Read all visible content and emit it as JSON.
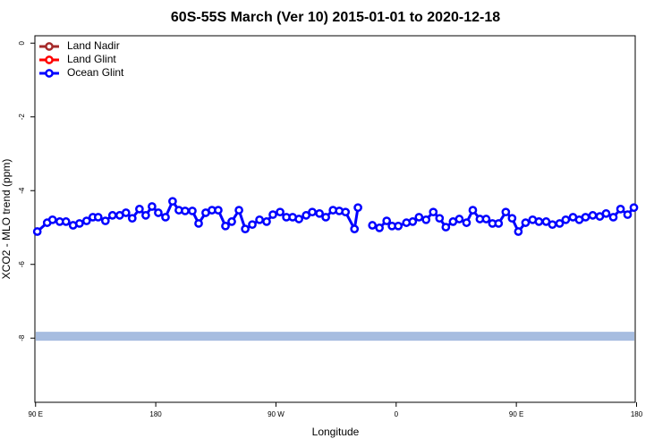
{
  "chart_data": {
    "type": "line",
    "title": "60S-55S March (Ver 10)   2015-01-01 to 2020-12-18",
    "x_label": "Longitude",
    "y_label": "XCO2 - MLO trend (ppm)",
    "xlim": [
      89.5,
      539
    ],
    "xticks": [
      {
        "value": 90,
        "label": "90 E"
      },
      180,
      {
        "value": 270,
        "label": "90 W"
      },
      0,
      {
        "value": 450,
        "label": "90 E"
      },
      {
        "value": 540,
        "label": "180"
      }
    ],
    "ylim": [
      -9.74,
      0.2
    ],
    "yticks": [
      0,
      -2,
      -4,
      -6,
      -8
    ],
    "legend": "top-left",
    "hline": {
      "value": -7.95,
      "color": "#a7bde0"
    },
    "series": [
      {
        "name": "Land Nadir",
        "color": "#a52a2a",
        "x": [],
        "values": []
      },
      {
        "name": "Land Glint",
        "color": "#ff0000",
        "x": [],
        "values": []
      },
      {
        "name": "Ocean Glint",
        "color": "#0000ff",
        "x": [
          91.3,
          98.7,
          102.7,
          108.1,
          112.8,
          118.1,
          122.9,
          128.2,
          132.9,
          136.9,
          142.3,
          147.6,
          153.0,
          157.7,
          162.4,
          167.8,
          172.5,
          177.2,
          181.9,
          187.3,
          192.6,
          197.3,
          202.0,
          207.4,
          212.1,
          217.4,
          222.1,
          226.8,
          232.2,
          236.9,
          242.3,
          247.0,
          252.3,
          257.7,
          263.0,
          267.7,
          273.1,
          277.8,
          282.5,
          287.2,
          292.6,
          297.2,
          302.6,
          307.3,
          312.7,
          317.4,
          322.1,
          328.8,
          331.4,
          337,
          342.2,
          347.5,
          352.9,
          356.9,
          361.6,
          367.7,
          372.4,
          377.1,
          382.4,
          387.8,
          392.5,
          397.2,
          402.6,
          407.3,
          412.7,
          417.4,
          422.7,
          427.4,
          432.1,
          436.7,
          442.1,
          446.8,
          451.5,
          456.9,
          462.2,
          466.9,
          472.3,
          477.0,
          482.4,
          487.0,
          492.4,
          497.1,
          501.8,
          507.2,
          512.5,
          517.2,
          522.6,
          528.0,
          533.3,
          538.0
        ],
        "values": [
          -5.11,
          -4.87,
          -4.79,
          -4.84,
          -4.84,
          -4.94,
          -4.89,
          -4.82,
          -4.72,
          -4.72,
          -4.82,
          -4.67,
          -4.67,
          -4.6,
          -4.75,
          -4.5,
          -4.67,
          -4.43,
          -4.6,
          -4.72,
          -4.29,
          -4.53,
          -4.55,
          -4.55,
          -4.89,
          -4.6,
          -4.53,
          -4.53,
          -4.96,
          -4.84,
          -4.53,
          -5.04,
          -4.92,
          -4.79,
          -4.84,
          -4.65,
          -4.58,
          -4.72,
          -4.72,
          -4.77,
          -4.67,
          -4.58,
          -4.62,
          -4.72,
          -4.53,
          -4.55,
          -4.58,
          -5.04,
          -4.46,
          null,
          -4.94,
          -5.01,
          -4.82,
          -4.96,
          -4.96,
          -4.87,
          -4.84,
          -4.72,
          -4.79,
          -4.58,
          -4.75,
          -4.99,
          -4.84,
          -4.77,
          -4.87,
          -4.53,
          -4.77,
          -4.77,
          -4.89,
          -4.89,
          -4.58,
          -4.75,
          -5.11,
          -4.87,
          -4.79,
          -4.84,
          -4.84,
          -4.92,
          -4.89,
          -4.79,
          -4.72,
          -4.79,
          -4.72,
          -4.67,
          -4.7,
          -4.62,
          -4.72,
          -4.5,
          -4.65,
          -4.46
        ]
      }
    ]
  }
}
